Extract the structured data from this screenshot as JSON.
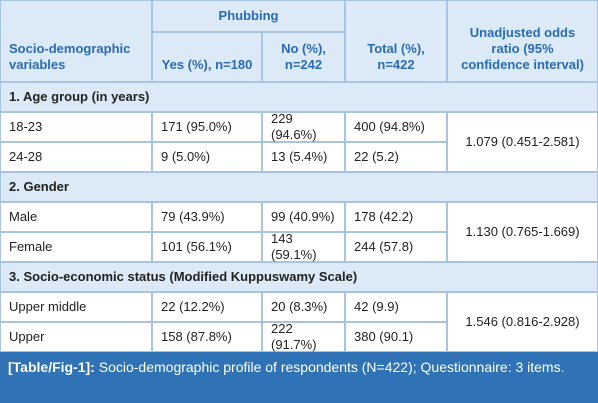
{
  "table": {
    "header": {
      "group": "Phubbing",
      "columns": [
        "Socio-demographic variables",
        "Yes (%), n=180",
        "No (%), n=242",
        "Total (%), n=422",
        "Unadjusted odds ratio (95% confidence interval)"
      ]
    },
    "sections": [
      {
        "title": "1. Age group (in years)",
        "rows": [
          [
            "18-23",
            "171 (95.0%)",
            "229 (94.6%)",
            "400 (94.8%)"
          ],
          [
            "24-28",
            "9 (5.0%)",
            "13 (5.4%)",
            "22 (5.2)"
          ]
        ],
        "odds_ratio": "1.079 (0.451-2.581)"
      },
      {
        "title": "2. Gender",
        "rows": [
          [
            "Male",
            "79 (43.9%)",
            "99 (40.9%)",
            "178 (42.2)"
          ],
          [
            "Female",
            "101 (56.1%)",
            "143 (59.1%)",
            "244 (57.8)"
          ]
        ],
        "odds_ratio": "1.130 (0.765-1.669)"
      },
      {
        "title": "3. Socio-economic status (Modified Kuppuswamy Scale)",
        "rows": [
          [
            "Upper middle",
            "22 (12.2%)",
            "20 (8.3%)",
            "42 (9.9)"
          ],
          [
            "Upper",
            "158 (87.8%)",
            "222 (91.7%)",
            "380 (90.1)"
          ]
        ],
        "odds_ratio": "1.546 (0.816-2.928)"
      }
    ]
  },
  "caption": {
    "label": "[Table/Fig-1]:",
    "text": "Socio-demographic profile of respondents (N=422); Questionnaire: 3 items."
  }
}
